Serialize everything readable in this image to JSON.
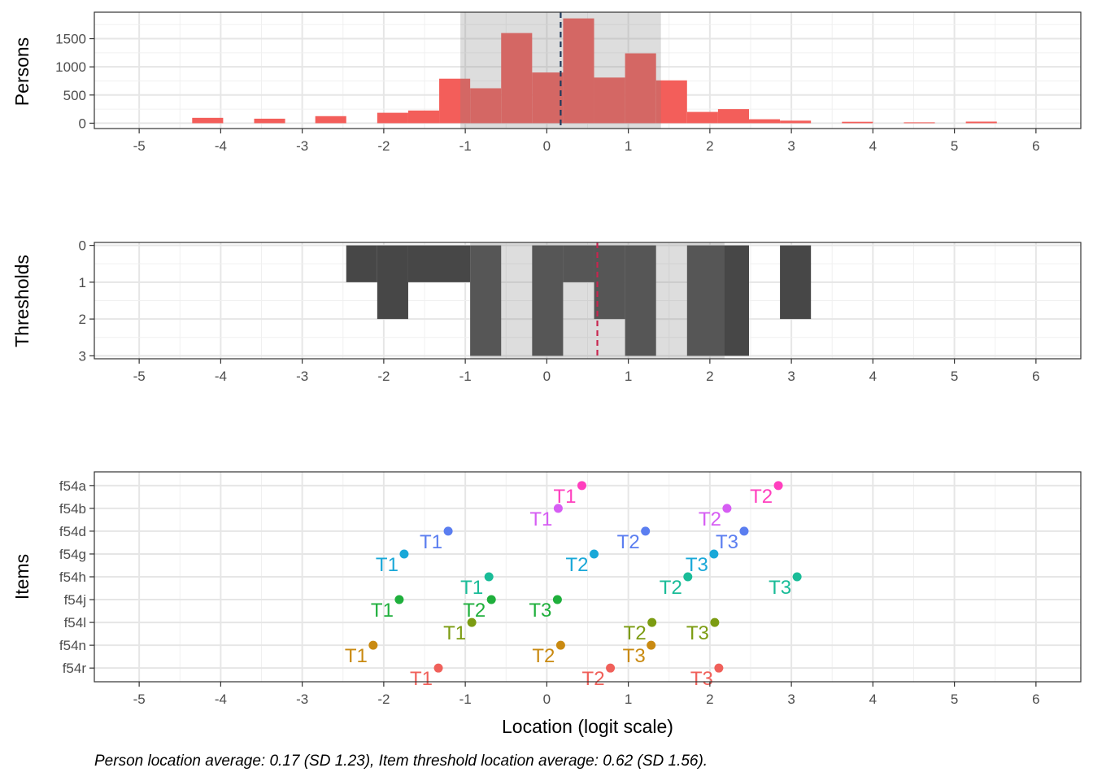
{
  "chart_data": [
    {
      "type": "bar",
      "panel": "persons",
      "ylabel": "Persons",
      "xlim": [
        -5.55,
        6.55
      ],
      "ylim": [
        -95,
        1970
      ],
      "x_ticks": [
        -5,
        -4,
        -3,
        -2,
        -1,
        0,
        1,
        2,
        3,
        4,
        5,
        6
      ],
      "y_ticks": [
        0,
        500,
        1000,
        1500
      ],
      "grid": true,
      "bar_color": "#F35E5A",
      "bins": [
        {
          "x0": -4.35,
          "x1": -3.97,
          "count": 95
        },
        {
          "x0": -3.59,
          "x1": -3.21,
          "count": 80
        },
        {
          "x0": -2.84,
          "x1": -2.46,
          "count": 125
        },
        {
          "x0": -2.08,
          "x1": -1.7,
          "count": 185
        },
        {
          "x0": -1.7,
          "x1": -1.32,
          "count": 225
        },
        {
          "x0": -1.32,
          "x1": -0.94,
          "count": 790
        },
        {
          "x0": -0.94,
          "x1": -0.56,
          "count": 620
        },
        {
          "x0": -0.56,
          "x1": -0.18,
          "count": 1600
        },
        {
          "x0": -0.18,
          "x1": 0.2,
          "count": 900
        },
        {
          "x0": 0.2,
          "x1": 0.58,
          "count": 1860
        },
        {
          "x0": 0.58,
          "x1": 0.96,
          "count": 810
        },
        {
          "x0": 0.96,
          "x1": 1.34,
          "count": 1240
        },
        {
          "x0": 1.34,
          "x1": 1.72,
          "count": 760
        },
        {
          "x0": 1.72,
          "x1": 2.1,
          "count": 200
        },
        {
          "x0": 2.1,
          "x1": 2.48,
          "count": 250
        },
        {
          "x0": 2.48,
          "x1": 2.86,
          "count": 70
        },
        {
          "x0": 2.86,
          "x1": 3.24,
          "count": 45
        },
        {
          "x0": 3.62,
          "x1": 4.0,
          "count": 25
        },
        {
          "x0": 4.38,
          "x1": 4.76,
          "count": 15
        },
        {
          "x0": 5.14,
          "x1": 5.52,
          "count": 28
        }
      ],
      "sd_band": [
        -1.06,
        1.4
      ],
      "mean": 0.17
    },
    {
      "type": "bar",
      "panel": "thresholds",
      "ylabel": "Thresholds",
      "xlim": [
        -5.55,
        6.55
      ],
      "ylim": [
        3.08,
        -0.08
      ],
      "x_ticks": [
        -5,
        -4,
        -3,
        -2,
        -1,
        0,
        1,
        2,
        3,
        4,
        5,
        6
      ],
      "y_ticks": [
        0,
        1,
        2,
        3
      ],
      "grid": true,
      "bar_color": "#474747",
      "bins": [
        {
          "x0": -2.46,
          "x1": -2.08,
          "count": 1
        },
        {
          "x0": -2.08,
          "x1": -1.7,
          "count": 2
        },
        {
          "x0": -1.7,
          "x1": -0.94,
          "count": 1
        },
        {
          "x0": -0.94,
          "x1": -0.56,
          "count": 3
        },
        {
          "x0": -0.18,
          "x1": 0.2,
          "count": 3
        },
        {
          "x0": 0.2,
          "x1": 0.58,
          "count": 1
        },
        {
          "x0": 0.58,
          "x1": 0.96,
          "count": 2
        },
        {
          "x0": 0.96,
          "x1": 1.34,
          "count": 3
        },
        {
          "x0": 1.72,
          "x1": 2.48,
          "count": 3
        },
        {
          "x0": 2.86,
          "x1": 3.24,
          "count": 2
        }
      ],
      "sd_band": [
        -0.94,
        2.18
      ],
      "mean": 0.62
    },
    {
      "type": "scatter",
      "panel": "items",
      "ylabel": "Items",
      "xlabel": "Location (logit scale)",
      "xlim": [
        -5.55,
        6.55
      ],
      "x_ticks": [
        -5,
        -4,
        -3,
        -2,
        -1,
        0,
        1,
        2,
        3,
        4,
        5,
        6
      ],
      "grid": true,
      "categories": [
        "f54a",
        "f54b",
        "f54d",
        "f54g",
        "f54h",
        "f54j",
        "f54l",
        "f54n",
        "f54r"
      ],
      "series": [
        {
          "name": "f54a",
          "color": "#FF3FBE",
          "points": [
            {
              "label": "T1",
              "x": 0.43
            },
            {
              "label": "T2",
              "x": 2.84
            }
          ]
        },
        {
          "name": "f54b",
          "color": "#D65DF3",
          "points": [
            {
              "label": "T1",
              "x": 0.14
            },
            {
              "label": "T2",
              "x": 2.21
            }
          ]
        },
        {
          "name": "f54d",
          "color": "#5B7EF0",
          "points": [
            {
              "label": "T1",
              "x": -1.21
            },
            {
              "label": "T2",
              "x": 1.21
            },
            {
              "label": "T3",
              "x": 2.42
            }
          ]
        },
        {
          "name": "f54g",
          "color": "#19A8D8",
          "points": [
            {
              "label": "T1",
              "x": -1.75
            },
            {
              "label": "T2",
              "x": 0.58
            },
            {
              "label": "T3",
              "x": 2.05
            }
          ]
        },
        {
          "name": "f54h",
          "color": "#1ABC98",
          "points": [
            {
              "label": "T1",
              "x": -0.71
            },
            {
              "label": "T2",
              "x": 1.73
            },
            {
              "label": "T3",
              "x": 3.07
            }
          ]
        },
        {
          "name": "f54j",
          "color": "#1FAF3C",
          "points": [
            {
              "label": "T1",
              "x": -1.81
            },
            {
              "label": "T2",
              "x": -0.68
            },
            {
              "label": "T3",
              "x": 0.13
            }
          ]
        },
        {
          "name": "f54l",
          "color": "#7C9C12",
          "points": [
            {
              "label": "T1",
              "x": -0.92
            },
            {
              "label": "T2",
              "x": 1.29
            },
            {
              "label": "T3",
              "x": 2.06
            }
          ]
        },
        {
          "name": "f54n",
          "color": "#C98A11",
          "points": [
            {
              "label": "T1",
              "x": -2.13
            },
            {
              "label": "T2",
              "x": 0.17
            },
            {
              "label": "T3",
              "x": 1.28
            }
          ]
        },
        {
          "name": "f54r",
          "color": "#F0605A",
          "points": [
            {
              "label": "T1",
              "x": -1.33
            },
            {
              "label": "T2",
              "x": 0.78
            },
            {
              "label": "T3",
              "x": 2.11
            }
          ]
        }
      ]
    }
  ],
  "caption": "Person location average: 0.17 (SD 1.23), Item threshold location average: 0.62 (SD 1.56)."
}
